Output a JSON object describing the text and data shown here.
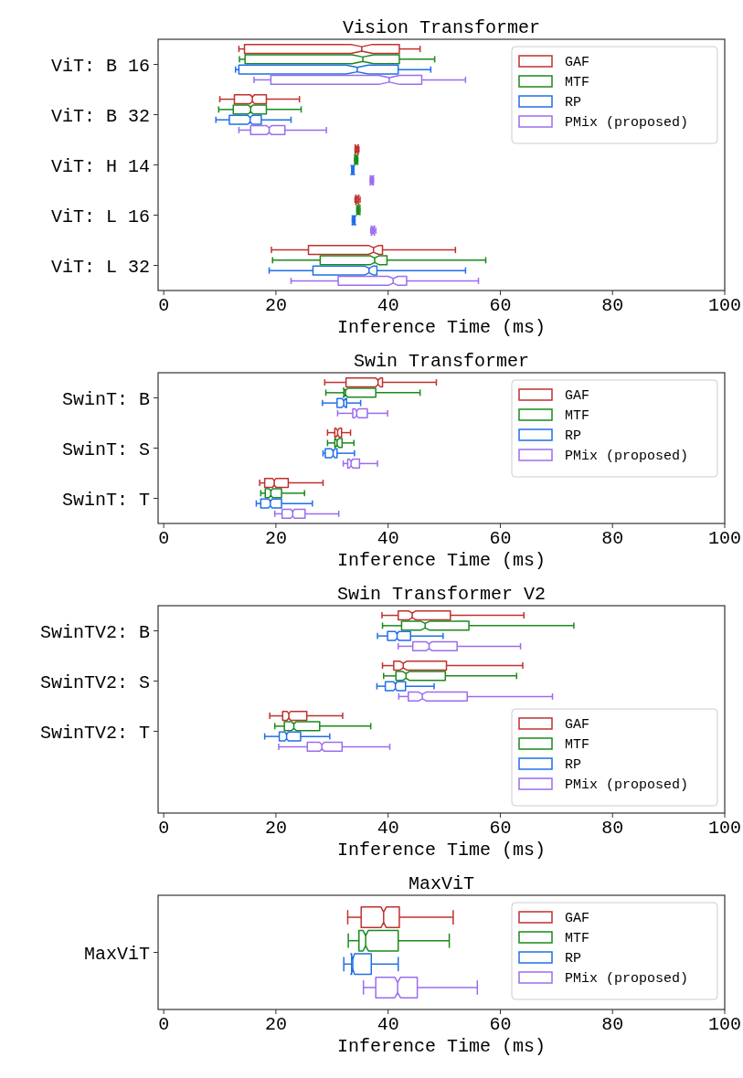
{
  "chart_data": [
    {
      "type": "box",
      "title": "Vision Transformer",
      "xlabel": "Inference Time (ms)",
      "orientation": "horizontal",
      "legend": "top right",
      "xlim": [
        -1,
        100
      ],
      "xticks": [
        0,
        20,
        40,
        60,
        80,
        100
      ],
      "categories": [
        "ViT: B 16",
        "ViT: B 32",
        "ViT: H 14",
        "ViT: L 16",
        "ViT: L 32"
      ],
      "series": [
        {
          "name": "GAF",
          "color": "#c0302f",
          "boxes": [
            {
              "low": 13.4,
              "q1": 14.4,
              "median": 35.3,
              "q3": 42.0,
              "high": 45.7
            },
            {
              "low": 10.0,
              "q1": 12.6,
              "median": 15.8,
              "q3": 18.3,
              "high": 24.2
            },
            {
              "low": 34.1,
              "q1": 34.2,
              "median": 34.4,
              "q3": 34.6,
              "high": 34.8
            },
            {
              "low": 34.1,
              "q1": 34.3,
              "median": 34.5,
              "q3": 34.7,
              "high": 35.0
            },
            {
              "low": 19.2,
              "q1": 25.8,
              "median": 37.4,
              "q3": 39.0,
              "high": 52.0
            }
          ]
        },
        {
          "name": "MTF",
          "color": "#1a8a1a",
          "boxes": [
            {
              "low": 13.5,
              "q1": 14.5,
              "median": 35.5,
              "q3": 42.0,
              "high": 48.3
            },
            {
              "low": 9.8,
              "q1": 12.4,
              "median": 15.5,
              "q3": 18.3,
              "high": 24.5
            },
            {
              "low": 34.0,
              "q1": 34.2,
              "median": 34.3,
              "q3": 34.4,
              "high": 34.6
            },
            {
              "low": 34.4,
              "q1": 34.6,
              "median": 34.7,
              "q3": 34.8,
              "high": 35.0
            },
            {
              "low": 19.4,
              "q1": 27.9,
              "median": 37.6,
              "q3": 39.8,
              "high": 57.4
            }
          ]
        },
        {
          "name": "RP",
          "color": "#1f6fe8",
          "boxes": [
            {
              "low": 12.8,
              "q1": 13.4,
              "median": 34.5,
              "q3": 41.8,
              "high": 47.6
            },
            {
              "low": 9.3,
              "q1": 11.7,
              "median": 15.4,
              "q3": 17.4,
              "high": 22.7
            },
            {
              "low": 33.5,
              "q1": 33.6,
              "median": 33.7,
              "q3": 33.8,
              "high": 33.9
            },
            {
              "low": 33.6,
              "q1": 33.8,
              "median": 33.9,
              "q3": 34.0,
              "high": 34.1
            },
            {
              "low": 18.8,
              "q1": 26.6,
              "median": 36.6,
              "q3": 38.0,
              "high": 53.8
            }
          ]
        },
        {
          "name": "PMix (proposed)",
          "color": "#9b6cf0",
          "boxes": [
            {
              "low": 16.1,
              "q1": 19.1,
              "median": 40.2,
              "q3": 46.0,
              "high": 53.8
            },
            {
              "low": 13.4,
              "q1": 15.5,
              "median": 18.8,
              "q3": 21.6,
              "high": 29.0
            },
            {
              "low": 36.8,
              "q1": 36.9,
              "median": 37.1,
              "q3": 37.2,
              "high": 37.4
            },
            {
              "low": 36.9,
              "q1": 37.1,
              "median": 37.3,
              "q3": 37.5,
              "high": 37.8
            },
            {
              "low": 22.7,
              "q1": 31.1,
              "median": 40.9,
              "q3": 43.3,
              "high": 56.1
            }
          ]
        }
      ]
    },
    {
      "type": "box",
      "title": "Swin Transformer",
      "xlabel": "Inference Time (ms)",
      "orientation": "horizontal",
      "legend": "top right",
      "xlim": [
        -1,
        100
      ],
      "xticks": [
        0,
        20,
        40,
        60,
        80,
        100
      ],
      "categories": [
        "SwinT: B",
        "SwinT: S",
        "SwinT: T"
      ],
      "series": [
        {
          "name": "GAF",
          "color": "#c0302f",
          "boxes": [
            {
              "low": 28.7,
              "q1": 32.5,
              "median": 38.2,
              "q3": 39.0,
              "high": 48.6
            },
            {
              "low": 29.2,
              "q1": 30.5,
              "median": 31.0,
              "q3": 31.7,
              "high": 33.3
            },
            {
              "low": 17.1,
              "q1": 18.0,
              "median": 19.7,
              "q3": 22.2,
              "high": 28.4
            }
          ]
        },
        {
          "name": "MTF",
          "color": "#1a8a1a",
          "boxes": [
            {
              "low": 28.9,
              "q1": 32.1,
              "median": 32.4,
              "q3": 37.8,
              "high": 45.7
            },
            {
              "low": 29.2,
              "q1": 30.5,
              "median": 30.9,
              "q3": 31.8,
              "high": 33.9
            },
            {
              "low": 17.3,
              "q1": 18.1,
              "median": 19.1,
              "q3": 21.0,
              "high": 25.1
            }
          ]
        },
        {
          "name": "RP",
          "color": "#1f6fe8",
          "boxes": [
            {
              "low": 28.3,
              "q1": 30.9,
              "median": 32.1,
              "q3": 32.6,
              "high": 35.1
            },
            {
              "low": 28.4,
              "q1": 28.8,
              "median": 30.2,
              "q3": 30.9,
              "high": 34.0
            },
            {
              "low": 16.5,
              "q1": 17.3,
              "median": 19.0,
              "q3": 21.0,
              "high": 26.5
            }
          ]
        },
        {
          "name": "PMix (proposed)",
          "color": "#9b6cf0",
          "boxes": [
            {
              "low": 31.0,
              "q1": 33.7,
              "median": 34.4,
              "q3": 36.3,
              "high": 39.9
            },
            {
              "low": 32.0,
              "q1": 32.8,
              "median": 33.4,
              "q3": 34.9,
              "high": 38.1
            },
            {
              "low": 19.8,
              "q1": 21.1,
              "median": 23.0,
              "q3": 25.2,
              "high": 31.2
            }
          ]
        }
      ]
    },
    {
      "type": "box",
      "title": "Swin Transformer V2",
      "xlabel": "Inference Time (ms)",
      "orientation": "horizontal",
      "legend": "bottom right",
      "xlim": [
        -1,
        100
      ],
      "xticks": [
        0,
        20,
        40,
        60,
        80,
        100
      ],
      "categories": [
        "SwinTV2: B",
        "SwinTV2: S",
        "SwinTV2: T"
      ],
      "series": [
        {
          "name": "GAF",
          "color": "#c0302f",
          "boxes": [
            {
              "low": 38.9,
              "q1": 41.8,
              "median": 44.3,
              "q3": 51.1,
              "high": 64.2
            },
            {
              "low": 39.0,
              "q1": 41.0,
              "median": 42.7,
              "q3": 50.4,
              "high": 64.0
            },
            {
              "low": 18.9,
              "q1": 21.2,
              "median": 22.3,
              "q3": 25.5,
              "high": 31.9
            }
          ]
        },
        {
          "name": "MTF",
          "color": "#1a8a1a",
          "boxes": [
            {
              "low": 39.0,
              "q1": 42.4,
              "median": 46.6,
              "q3": 54.4,
              "high": 73.1
            },
            {
              "low": 39.2,
              "q1": 41.4,
              "median": 43.2,
              "q3": 50.2,
              "high": 62.9
            },
            {
              "low": 19.8,
              "q1": 21.5,
              "median": 23.2,
              "q3": 27.8,
              "high": 36.9
            }
          ]
        },
        {
          "name": "RP",
          "color": "#1f6fe8",
          "boxes": [
            {
              "low": 38.1,
              "q1": 39.9,
              "median": 41.6,
              "q3": 44.0,
              "high": 49.8
            },
            {
              "low": 38.0,
              "q1": 39.5,
              "median": 41.3,
              "q3": 43.1,
              "high": 48.2
            },
            {
              "low": 18.0,
              "q1": 20.6,
              "median": 21.9,
              "q3": 24.4,
              "high": 29.6
            }
          ]
        },
        {
          "name": "PMix (proposed)",
          "color": "#9b6cf0",
          "boxes": [
            {
              "low": 41.8,
              "q1": 44.4,
              "median": 47.3,
              "q3": 52.3,
              "high": 63.6
            },
            {
              "low": 41.9,
              "q1": 43.6,
              "median": 46.1,
              "q3": 54.1,
              "high": 69.3
            },
            {
              "low": 20.5,
              "q1": 25.6,
              "median": 28.2,
              "q3": 31.8,
              "high": 40.3
            }
          ]
        }
      ]
    },
    {
      "type": "box",
      "title": "MaxViT",
      "xlabel": "Inference Time (ms)",
      "orientation": "horizontal",
      "legend": "top right",
      "xlim": [
        -1,
        100
      ],
      "xticks": [
        0,
        20,
        40,
        60,
        80,
        100
      ],
      "categories": [
        "MaxViT"
      ],
      "series": [
        {
          "name": "GAF",
          "color": "#c0302f",
          "boxes": [
            {
              "low": 32.8,
              "q1": 35.2,
              "median": 39.2,
              "q3": 42.0,
              "high": 51.6
            }
          ]
        },
        {
          "name": "MTF",
          "color": "#1a8a1a",
          "boxes": [
            {
              "low": 32.9,
              "q1": 34.8,
              "median": 36.0,
              "q3": 41.8,
              "high": 50.9
            }
          ]
        },
        {
          "name": "RP",
          "color": "#1f6fe8",
          "boxes": [
            {
              "low": 32.1,
              "q1": 33.5,
              "median": 33.7,
              "q3": 37.0,
              "high": 41.8
            }
          ]
        },
        {
          "name": "PMix (proposed)",
          "color": "#9b6cf0",
          "boxes": [
            {
              "low": 35.6,
              "q1": 37.8,
              "median": 41.7,
              "q3": 45.2,
              "high": 55.9
            }
          ]
        }
      ]
    }
  ]
}
